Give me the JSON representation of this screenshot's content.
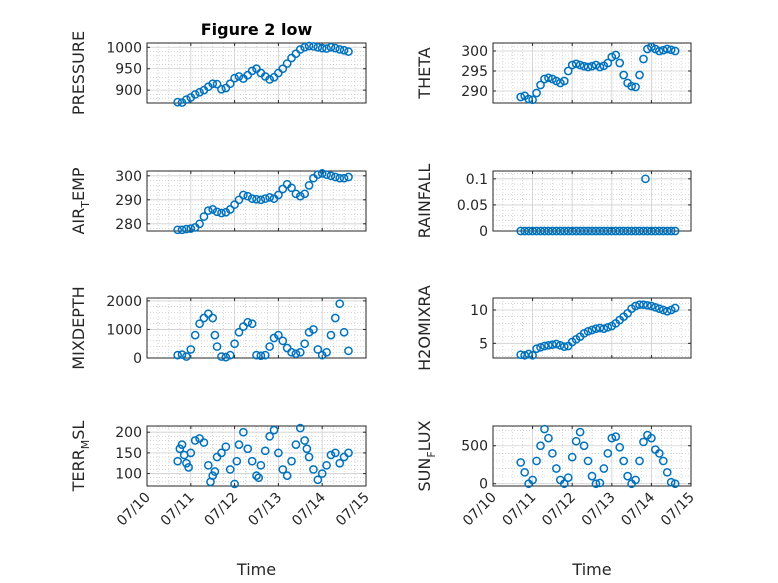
{
  "figure_title": "Figure 2 low",
  "marker_color": "#0072bd",
  "chart_data": [
    {
      "type": "scatter",
      "title": "Figure 2 low",
      "ylabel": "PRESSURE",
      "ylabel_sub": "",
      "xlim": [
        0,
        5
      ],
      "ylim": [
        870,
        1010
      ],
      "yticks": [
        900,
        950,
        1000
      ],
      "ytick_labels": [
        "900",
        "950",
        "1000"
      ],
      "xticks": [
        0,
        1,
        2,
        3,
        4,
        5
      ],
      "xtick_labels": [],
      "xlabel": "",
      "x": [
        0.7,
        0.8,
        0.9,
        1.0,
        1.1,
        1.2,
        1.3,
        1.4,
        1.5,
        1.6,
        1.7,
        1.8,
        1.9,
        2.0,
        2.1,
        2.2,
        2.3,
        2.4,
        2.5,
        2.6,
        2.7,
        2.8,
        2.9,
        3.0,
        3.1,
        3.2,
        3.3,
        3.4,
        3.5,
        3.6,
        3.7,
        3.8,
        3.9,
        4.0,
        4.1,
        4.2,
        4.3,
        4.4,
        4.5,
        4.6
      ],
      "y": [
        872,
        871,
        878,
        883,
        890,
        895,
        900,
        908,
        915,
        914,
        902,
        905,
        915,
        928,
        932,
        927,
        935,
        945,
        950,
        940,
        932,
        925,
        930,
        940,
        950,
        962,
        975,
        985,
        995,
        1000,
        1003,
        1002,
        1000,
        998,
        997,
        1000,
        998,
        995,
        993,
        990
      ]
    },
    {
      "type": "scatter",
      "title": "",
      "ylabel": "THETA",
      "ylabel_sub": "",
      "xlim": [
        0,
        5
      ],
      "ylim": [
        287,
        302
      ],
      "yticks": [
        290,
        295,
        300
      ],
      "ytick_labels": [
        "290",
        "295",
        "300"
      ],
      "xticks": [
        0,
        1,
        2,
        3,
        4,
        5
      ],
      "xtick_labels": [],
      "xlabel": "",
      "x": [
        0.7,
        0.8,
        0.9,
        1.0,
        1.1,
        1.2,
        1.3,
        1.4,
        1.5,
        1.6,
        1.7,
        1.8,
        1.9,
        2.0,
        2.1,
        2.2,
        2.3,
        2.4,
        2.5,
        2.6,
        2.7,
        2.8,
        2.9,
        3.0,
        3.1,
        3.2,
        3.3,
        3.4,
        3.5,
        3.6,
        3.7,
        3.8,
        3.9,
        4.0,
        4.1,
        4.2,
        4.3,
        4.4,
        4.5,
        4.6
      ],
      "y": [
        288.5,
        288.8,
        288.0,
        287.8,
        289.5,
        291.5,
        293.0,
        293.3,
        293.0,
        292.5,
        292.0,
        292.5,
        295.0,
        296.5,
        296.8,
        296.5,
        296.2,
        296.0,
        296.2,
        296.5,
        296.0,
        296.3,
        297.0,
        298.5,
        299.0,
        297.0,
        294.0,
        292.0,
        291.2,
        291.0,
        294.0,
        298.0,
        300.5,
        301.0,
        300.5,
        300.0,
        300.2,
        300.5,
        300.3,
        300.0
      ]
    },
    {
      "type": "scatter",
      "title": "",
      "ylabel": "AIR",
      "ylabel_sub": "T",
      "ylabel_tail": "EMP",
      "xlim": [
        0,
        5
      ],
      "ylim": [
        277,
        302
      ],
      "yticks": [
        280,
        290,
        300
      ],
      "ytick_labels": [
        "280",
        "290",
        "300"
      ],
      "xticks": [
        0,
        1,
        2,
        3,
        4,
        5
      ],
      "xtick_labels": [],
      "xlabel": "",
      "x": [
        0.7,
        0.8,
        0.9,
        1.0,
        1.1,
        1.2,
        1.3,
        1.4,
        1.5,
        1.6,
        1.7,
        1.8,
        1.9,
        2.0,
        2.1,
        2.2,
        2.3,
        2.4,
        2.5,
        2.6,
        2.7,
        2.8,
        2.9,
        3.0,
        3.1,
        3.2,
        3.3,
        3.4,
        3.5,
        3.6,
        3.7,
        3.8,
        3.9,
        4.0,
        4.1,
        4.2,
        4.3,
        4.4,
        4.5,
        4.6
      ],
      "y": [
        277.5,
        277.5,
        277.8,
        278.0,
        278.5,
        280.0,
        283.0,
        285.5,
        286.0,
        285.0,
        284.5,
        284.8,
        286.0,
        288.0,
        290.0,
        292.0,
        291.5,
        290.5,
        290.2,
        290.0,
        290.5,
        291.0,
        290.5,
        292.0,
        294.5,
        296.5,
        295.0,
        292.5,
        291.5,
        292.5,
        296.0,
        299.0,
        300.5,
        301.0,
        300.5,
        300.0,
        299.5,
        299.0,
        299.0,
        299.5
      ]
    },
    {
      "type": "scatter",
      "title": "",
      "ylabel": "RAINFALL",
      "ylabel_sub": "",
      "xlim": [
        0,
        5
      ],
      "ylim": [
        0,
        0.115
      ],
      "yticks": [
        0,
        0.05,
        0.1
      ],
      "ytick_labels": [
        "0",
        "0.05",
        "0.1"
      ],
      "xticks": [
        0,
        1,
        2,
        3,
        4,
        5
      ],
      "xtick_labels": [],
      "xlabel": "",
      "x": [
        0.7,
        0.8,
        0.9,
        1.0,
        1.1,
        1.2,
        1.3,
        1.4,
        1.5,
        1.6,
        1.7,
        1.8,
        1.9,
        2.0,
        2.1,
        2.2,
        2.3,
        2.4,
        2.5,
        2.6,
        2.7,
        2.8,
        2.9,
        3.0,
        3.1,
        3.2,
        3.3,
        3.4,
        3.5,
        3.6,
        3.7,
        3.8,
        3.9,
        4.0,
        4.1,
        4.2,
        4.3,
        4.4,
        4.5,
        4.6,
        3.85
      ],
      "y": [
        0,
        0,
        0,
        0,
        0,
        0,
        0,
        0,
        0,
        0,
        0,
        0,
        0,
        0,
        0,
        0,
        0,
        0,
        0,
        0,
        0,
        0,
        0,
        0,
        0,
        0,
        0,
        0,
        0,
        0,
        0,
        0,
        0,
        0,
        0,
        0,
        0,
        0,
        0,
        0,
        0.1
      ]
    },
    {
      "type": "scatter",
      "title": "",
      "ylabel": "MIXDEPTH",
      "ylabel_sub": "",
      "xlim": [
        0,
        5
      ],
      "ylim": [
        0,
        2100
      ],
      "yticks": [
        0,
        1000,
        2000
      ],
      "ytick_labels": [
        "0",
        "1000",
        "2000"
      ],
      "xticks": [
        0,
        1,
        2,
        3,
        4,
        5
      ],
      "xtick_labels": [],
      "xlabel": "",
      "x": [
        0.7,
        0.8,
        0.9,
        1.0,
        1.1,
        1.2,
        1.3,
        1.4,
        1.5,
        1.55,
        1.6,
        1.7,
        1.8,
        1.9,
        2.0,
        2.1,
        2.2,
        2.3,
        2.4,
        2.5,
        2.6,
        2.7,
        2.8,
        2.9,
        3.0,
        3.1,
        3.2,
        3.3,
        3.4,
        3.5,
        3.6,
        3.7,
        3.8,
        3.9,
        4.0,
        4.1,
        4.2,
        4.3,
        4.4,
        4.5,
        4.6
      ],
      "y": [
        100,
        120,
        50,
        300,
        800,
        1200,
        1400,
        1550,
        1400,
        800,
        400,
        50,
        30,
        100,
        500,
        900,
        1100,
        1250,
        1200,
        100,
        80,
        100,
        400,
        700,
        800,
        600,
        350,
        200,
        150,
        200,
        500,
        900,
        1000,
        300,
        100,
        200,
        800,
        1400,
        1900,
        900,
        250
      ]
    },
    {
      "type": "scatter",
      "title": "",
      "ylabel": "H2OMIXRA",
      "ylabel_sub": "",
      "xlim": [
        0,
        5
      ],
      "ylim": [
        2.8,
        11.8
      ],
      "yticks": [
        5,
        10
      ],
      "ytick_labels": [
        "5",
        "10"
      ],
      "xticks": [
        0,
        1,
        2,
        3,
        4,
        5
      ],
      "xtick_labels": [],
      "xlabel": "",
      "x": [
        0.7,
        0.8,
        0.9,
        1.0,
        1.1,
        1.2,
        1.3,
        1.4,
        1.5,
        1.6,
        1.7,
        1.8,
        1.9,
        2.0,
        2.1,
        2.2,
        2.3,
        2.4,
        2.5,
        2.6,
        2.7,
        2.8,
        2.9,
        3.0,
        3.1,
        3.2,
        3.3,
        3.4,
        3.5,
        3.6,
        3.7,
        3.8,
        3.9,
        4.0,
        4.1,
        4.2,
        4.3,
        4.4,
        4.5,
        4.6
      ],
      "y": [
        3.3,
        3.2,
        3.4,
        3.2,
        4.2,
        4.4,
        4.6,
        4.7,
        4.8,
        4.9,
        4.7,
        4.5,
        4.6,
        5.2,
        5.6,
        6.0,
        6.5,
        6.8,
        7.0,
        7.2,
        7.3,
        7.2,
        7.4,
        7.6,
        8.0,
        8.5,
        9.0,
        9.5,
        10.2,
        10.6,
        10.8,
        10.8,
        10.7,
        10.6,
        10.4,
        10.2,
        10.0,
        9.8,
        10.0,
        10.3
      ]
    },
    {
      "type": "scatter",
      "title": "",
      "ylabel": "TERR",
      "ylabel_sub": "M",
      "ylabel_tail": "SL",
      "xlim": [
        0,
        5
      ],
      "ylim": [
        70,
        215
      ],
      "yticks": [
        100,
        150,
        200
      ],
      "ytick_labels": [
        "100",
        "150",
        "200"
      ],
      "xticks": [
        0,
        1,
        2,
        3,
        4,
        5
      ],
      "xtick_labels": [
        "07/10",
        "07/11",
        "07/12",
        "07/13",
        "07/14",
        "07/15"
      ],
      "xlabel": "Time",
      "x": [
        0.7,
        0.75,
        0.8,
        0.85,
        0.9,
        0.95,
        1.0,
        1.1,
        1.2,
        1.3,
        1.4,
        1.45,
        1.5,
        1.55,
        1.6,
        1.7,
        1.8,
        1.9,
        2.0,
        2.05,
        2.1,
        2.2,
        2.3,
        2.4,
        2.5,
        2.55,
        2.6,
        2.7,
        2.8,
        2.9,
        3.0,
        3.1,
        3.2,
        3.3,
        3.4,
        3.5,
        3.6,
        3.65,
        3.7,
        3.8,
        3.9,
        4.0,
        4.1,
        4.2,
        4.3,
        4.4,
        4.5,
        4.6
      ],
      "y": [
        130,
        160,
        170,
        145,
        125,
        115,
        150,
        180,
        185,
        175,
        120,
        80,
        95,
        105,
        140,
        150,
        165,
        110,
        75,
        130,
        170,
        200,
        160,
        130,
        95,
        90,
        120,
        155,
        190,
        205,
        150,
        110,
        95,
        130,
        170,
        210,
        180,
        160,
        140,
        110,
        85,
        100,
        120,
        145,
        150,
        125,
        140,
        150
      ]
    },
    {
      "type": "scatter",
      "title": "",
      "ylabel": "SUN",
      "ylabel_sub": "F",
      "ylabel_tail": "LUX",
      "xlim": [
        0,
        5
      ],
      "ylim": [
        -30,
        760
      ],
      "yticks": [
        0,
        500
      ],
      "ytick_labels": [
        "0",
        "500"
      ],
      "xticks": [
        0,
        1,
        2,
        3,
        4,
        5
      ],
      "xtick_labels": [
        "07/10",
        "07/11",
        "07/12",
        "07/13",
        "07/14",
        "07/15"
      ],
      "xlabel": "Time",
      "x": [
        0.7,
        0.8,
        0.9,
        1.0,
        1.1,
        1.2,
        1.3,
        1.4,
        1.5,
        1.6,
        1.7,
        1.8,
        1.9,
        2.0,
        2.1,
        2.2,
        2.3,
        2.4,
        2.5,
        2.6,
        2.7,
        2.8,
        2.9,
        3.0,
        3.1,
        3.2,
        3.3,
        3.4,
        3.5,
        3.6,
        3.7,
        3.8,
        3.9,
        4.0,
        4.1,
        4.2,
        4.3,
        4.4,
        4.5,
        4.6
      ],
      "y": [
        280,
        150,
        0,
        50,
        300,
        500,
        720,
        600,
        400,
        200,
        50,
        0,
        80,
        350,
        560,
        680,
        500,
        300,
        100,
        0,
        10,
        200,
        400,
        600,
        620,
        480,
        300,
        100,
        0,
        50,
        300,
        550,
        640,
        600,
        450,
        400,
        300,
        150,
        20,
        0
      ]
    }
  ]
}
